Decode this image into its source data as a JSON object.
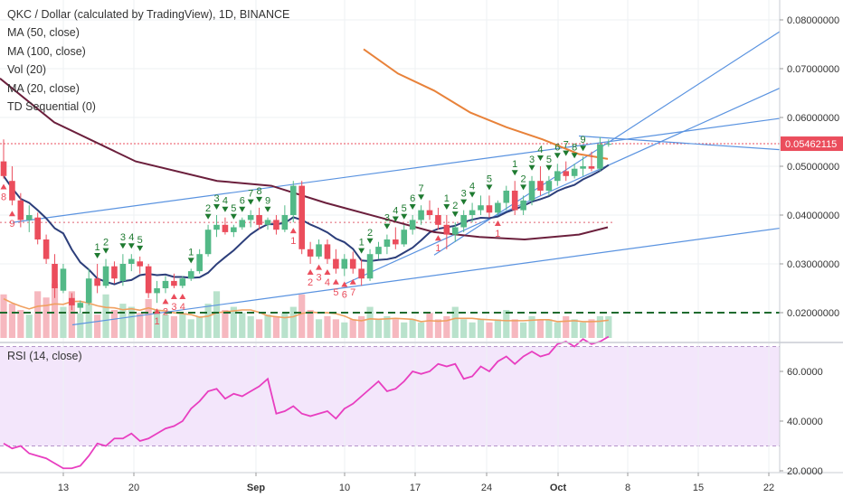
{
  "legend": {
    "title": "QKC / Dollar (calculated by TradingView), 1D, BINANCE",
    "items": [
      "MA (50, close)",
      "MA (100, close)",
      "Vol (20)",
      "MA (20, close)",
      "TD Sequential (0)"
    ]
  },
  "rsi_label": "RSI (14, close)",
  "price_tag": "0.05462115",
  "colors": {
    "up": "#53b987",
    "down": "#eb4d5c",
    "ma20": "#2c3e7a",
    "ma50": "#6b1f3c",
    "ma100": "#e8823a",
    "trend": "#5a93e0",
    "rsi": "#e83ec0",
    "rsi_bg": "#f3e6fb",
    "vol_up": "#b9e2cc",
    "vol_down": "#f6b8bf",
    "vol_ma": "#f0a060",
    "dash_green": "#1e6b2e",
    "tag": "#eb4d5c"
  },
  "chart_data": {
    "type": "candlestick",
    "title": "QKC / Dollar (calculated by TradingView), 1D, BINANCE",
    "y_ticks": [
      "0.08000000",
      "0.07000000",
      "0.06000000",
      "0.05000000",
      "0.04000000",
      "0.03000000",
      "0.02000000"
    ],
    "x_ticks": [
      "13",
      "20",
      "Sep",
      "10",
      "17",
      "24",
      "Oct",
      "8",
      "15",
      "22"
    ],
    "rsi_ticks": [
      "60.0000",
      "40.0000",
      "20.0000"
    ],
    "ylim": [
      0.0155,
      0.084
    ],
    "candles": [
      [
        0.051,
        0.0555,
        0.0475,
        0.048
      ],
      [
        0.047,
        0.05,
        0.042,
        0.043
      ],
      [
        0.043,
        0.0445,
        0.0375,
        0.039
      ],
      [
        0.039,
        0.042,
        0.0365,
        0.04
      ],
      [
        0.0395,
        0.0405,
        0.034,
        0.035
      ],
      [
        0.035,
        0.036,
        0.03,
        0.031
      ],
      [
        0.03,
        0.032,
        0.023,
        0.025
      ],
      [
        0.0245,
        0.03,
        0.024,
        0.029
      ],
      [
        0.023,
        0.024,
        0.0205,
        0.0215
      ],
      [
        0.021,
        0.0225,
        0.02,
        0.022
      ],
      [
        0.022,
        0.029,
        0.0215,
        0.027
      ],
      [
        0.027,
        0.03,
        0.024,
        0.0255
      ],
      [
        0.0255,
        0.031,
        0.025,
        0.0295
      ],
      [
        0.0295,
        0.0305,
        0.026,
        0.027
      ],
      [
        0.0265,
        0.032,
        0.0255,
        0.03
      ],
      [
        0.03,
        0.032,
        0.0285,
        0.031
      ],
      [
        0.0305,
        0.0315,
        0.028,
        0.0295
      ],
      [
        0.0295,
        0.03,
        0.023,
        0.024
      ],
      [
        0.024,
        0.0265,
        0.022,
        0.025
      ],
      [
        0.025,
        0.0275,
        0.024,
        0.0265
      ],
      [
        0.0265,
        0.028,
        0.025,
        0.0255
      ],
      [
        0.0255,
        0.0275,
        0.025,
        0.027
      ],
      [
        0.027,
        0.029,
        0.0265,
        0.0285
      ],
      [
        0.0285,
        0.033,
        0.028,
        0.032
      ],
      [
        0.032,
        0.038,
        0.0315,
        0.037
      ],
      [
        0.037,
        0.04,
        0.0355,
        0.038
      ],
      [
        0.038,
        0.0395,
        0.036,
        0.0365
      ],
      [
        0.0365,
        0.038,
        0.0355,
        0.0375
      ],
      [
        0.0375,
        0.0395,
        0.037,
        0.039
      ],
      [
        0.039,
        0.041,
        0.0375,
        0.04
      ],
      [
        0.04,
        0.0415,
        0.037,
        0.038
      ],
      [
        0.038,
        0.0395,
        0.037,
        0.039
      ],
      [
        0.039,
        0.04,
        0.036,
        0.037
      ],
      [
        0.037,
        0.042,
        0.0365,
        0.04
      ],
      [
        0.04,
        0.047,
        0.0385,
        0.046
      ],
      [
        0.046,
        0.047,
        0.032,
        0.033
      ],
      [
        0.033,
        0.0345,
        0.03,
        0.0315
      ],
      [
        0.0315,
        0.035,
        0.031,
        0.034
      ],
      [
        0.034,
        0.035,
        0.03,
        0.031
      ],
      [
        0.031,
        0.033,
        0.028,
        0.029
      ],
      [
        0.029,
        0.032,
        0.0275,
        0.031
      ],
      [
        0.031,
        0.0325,
        0.028,
        0.029
      ],
      [
        0.029,
        0.031,
        0.0255,
        0.027
      ],
      [
        0.027,
        0.033,
        0.0265,
        0.032
      ],
      [
        0.032,
        0.0345,
        0.031,
        0.0335
      ],
      [
        0.0335,
        0.036,
        0.032,
        0.035
      ],
      [
        0.035,
        0.0375,
        0.033,
        0.034
      ],
      [
        0.034,
        0.038,
        0.0335,
        0.037
      ],
      [
        0.037,
        0.04,
        0.036,
        0.039
      ],
      [
        0.039,
        0.042,
        0.038,
        0.041
      ],
      [
        0.041,
        0.043,
        0.039,
        0.04
      ],
      [
        0.04,
        0.0415,
        0.037,
        0.038
      ],
      [
        0.038,
        0.04,
        0.033,
        0.036
      ],
      [
        0.036,
        0.0385,
        0.0345,
        0.0375
      ],
      [
        0.0375,
        0.041,
        0.0365,
        0.04
      ],
      [
        0.04,
        0.0425,
        0.0385,
        0.041
      ],
      [
        0.041,
        0.044,
        0.04,
        0.042
      ],
      [
        0.042,
        0.044,
        0.0395,
        0.0405
      ],
      [
        0.0405,
        0.043,
        0.04,
        0.0425
      ],
      [
        0.0425,
        0.046,
        0.041,
        0.045
      ],
      [
        0.045,
        0.047,
        0.04,
        0.041
      ],
      [
        0.041,
        0.044,
        0.04,
        0.043
      ],
      [
        0.043,
        0.048,
        0.042,
        0.047
      ],
      [
        0.047,
        0.05,
        0.044,
        0.045
      ],
      [
        0.045,
        0.048,
        0.044,
        0.047
      ],
      [
        0.047,
        0.0505,
        0.046,
        0.049
      ],
      [
        0.049,
        0.051,
        0.047,
        0.048
      ],
      [
        0.048,
        0.0505,
        0.0475,
        0.0495
      ],
      [
        0.0495,
        0.052,
        0.048,
        0.05
      ],
      [
        0.05,
        0.053,
        0.049,
        0.0495
      ],
      [
        0.0495,
        0.056,
        0.049,
        0.0545
      ],
      [
        0.0545,
        0.0555,
        0.054,
        0.0546
      ]
    ],
    "volume": [
      28,
      22,
      18,
      15,
      30,
      26,
      35,
      20,
      30,
      16,
      22,
      15,
      28,
      18,
      22,
      20,
      16,
      25,
      18,
      15,
      14,
      16,
      12,
      14,
      22,
      30,
      18,
      20,
      16,
      14,
      12,
      15,
      14,
      16,
      20,
      28,
      18,
      12,
      14,
      12,
      10,
      12,
      14,
      20,
      12,
      14,
      12,
      10,
      12,
      10,
      16,
      12,
      14,
      20,
      12,
      10,
      12,
      10,
      12,
      18,
      12,
      10,
      14,
      12,
      12,
      10,
      14,
      12,
      10,
      12,
      14,
      14
    ],
    "rsi": [
      31,
      29,
      30,
      27,
      26,
      25,
      23,
      21,
      21,
      22,
      26,
      31,
      30,
      33,
      33,
      35,
      32,
      33,
      35,
      37,
      38,
      40,
      45,
      48,
      52,
      53,
      49,
      51,
      50,
      52,
      54,
      57,
      43,
      44,
      46,
      43,
      42,
      43,
      44,
      41,
      45,
      47,
      50,
      53,
      56,
      52,
      53,
      56,
      60,
      59,
      60,
      63,
      62,
      63,
      57,
      58,
      62,
      60,
      64,
      66,
      63,
      66,
      68,
      66,
      67,
      71,
      72,
      70,
      73,
      71,
      72,
      74
    ]
  }
}
